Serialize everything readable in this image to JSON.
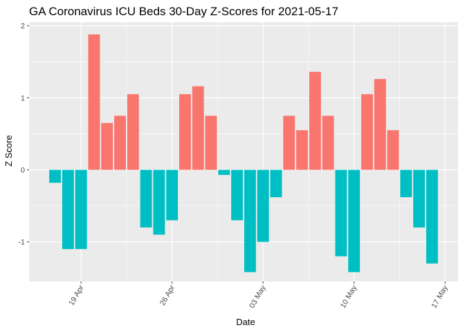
{
  "chart_data": {
    "type": "bar",
    "title": "GA Coronavirus ICU Beds 30-Day Z-Scores for 2021-05-17",
    "xlabel": "Date",
    "ylabel": "Z Score",
    "x": [
      "2021-04-17",
      "2021-04-18",
      "2021-04-19",
      "2021-04-20",
      "2021-04-21",
      "2021-04-22",
      "2021-04-23",
      "2021-04-24",
      "2021-04-25",
      "2021-04-26",
      "2021-04-27",
      "2021-04-28",
      "2021-04-29",
      "2021-04-30",
      "2021-05-01",
      "2021-05-02",
      "2021-05-03",
      "2021-05-04",
      "2021-05-05",
      "2021-05-06",
      "2021-05-07",
      "2021-05-08",
      "2021-05-09",
      "2021-05-10",
      "2021-05-11",
      "2021-05-12",
      "2021-05-13",
      "2021-05-14",
      "2021-05-15",
      "2021-05-16"
    ],
    "values": [
      -0.18,
      -1.1,
      -1.1,
      1.88,
      0.65,
      0.75,
      1.05,
      -0.8,
      -0.9,
      -0.7,
      1.05,
      1.16,
      0.75,
      -0.07,
      -0.7,
      -1.42,
      -1.0,
      -0.38,
      0.75,
      0.55,
      1.36,
      0.75,
      -1.2,
      -1.42,
      1.05,
      1.26,
      0.55,
      -0.38,
      -0.8,
      -1.3
    ],
    "xlim": [
      "2021-04-15",
      "2021-05-18"
    ],
    "ylim": [
      -1.55,
      2.05
    ],
    "y_ticks": [
      -1,
      0,
      1,
      2
    ],
    "x_ticks": [
      {
        "date": "2021-04-19",
        "label": "19 Apr"
      },
      {
        "date": "2021-04-26",
        "label": "26 Apr"
      },
      {
        "date": "2021-05-03",
        "label": "03 May"
      },
      {
        "date": "2021-05-10",
        "label": "10 May"
      },
      {
        "date": "2021-05-17",
        "label": "17 May"
      }
    ],
    "positive_color": "#F8766D",
    "negative_color": "#00BFC4",
    "panel_color": "#EBEBEB",
    "grid": true,
    "legend": "none"
  }
}
